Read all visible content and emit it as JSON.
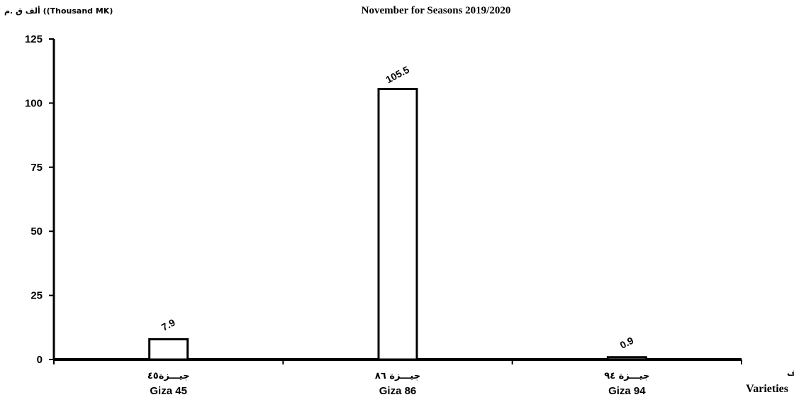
{
  "chart_data": {
    "type": "bar",
    "title": "November for Seasons  2019/2020",
    "ylabel": "ألف ق .م ((Thousand MK)",
    "xlabel_ar": "الأصناف",
    "xlabel_en": "Varieties",
    "ylim": [
      0,
      125
    ],
    "yticks": [
      "0",
      "25",
      "50",
      "75",
      "100",
      "125"
    ],
    "categories_ar": [
      "جيـــزة٤٥",
      "جيـــزة ٨٦",
      "جيـــزة ٩٤"
    ],
    "categories": [
      "Giza 45",
      "Giza 86",
      "Giza 94"
    ],
    "values": [
      7.9,
      105.5,
      0.9
    ],
    "data_labels": [
      "7.9",
      "105.5",
      "0.9"
    ],
    "grid": false,
    "legend": "none",
    "bar_fill": "#ffffff",
    "bar_stroke": "#000000"
  }
}
